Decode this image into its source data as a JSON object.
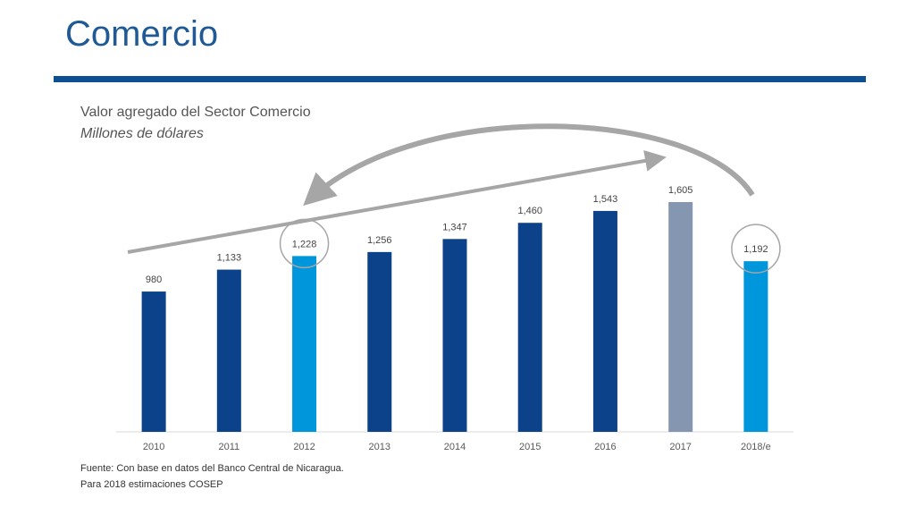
{
  "slide": {
    "title": "Comercio",
    "source": "Fuente: Con base en datos del Banco Central de Nicaragua.",
    "note": "Para 2018 estimaciones COSEP"
  },
  "colors": {
    "title": "#1f5a96",
    "rule": "#0e4f93",
    "bar_dark": "#0b428a",
    "bar_light": "#0096dc",
    "bar_gray": "#8597b0",
    "annotation": "#a6a6a6"
  },
  "chart_data": {
    "type": "bar",
    "title": "Valor agregado del Sector Comercio",
    "subtitle": "Millones de dólares",
    "categories": [
      "2010",
      "2011",
      "2012",
      "2013",
      "2014",
      "2015",
      "2016",
      "2017",
      "2018/e"
    ],
    "values": [
      980,
      1133,
      1228,
      1256,
      1347,
      1460,
      1543,
      1605,
      1192
    ],
    "data_labels": [
      "980",
      "1,133",
      "1,228",
      "1,256",
      "1,347",
      "1,460",
      "1,543",
      "1,605",
      "1,192"
    ],
    "bar_color_keys": [
      "bar_dark",
      "bar_dark",
      "bar_light",
      "bar_dark",
      "bar_dark",
      "bar_dark",
      "bar_dark",
      "bar_gray",
      "bar_light"
    ],
    "highlighted_categories": [
      "2012",
      "2018/e"
    ],
    "ylim": [
      0,
      1605
    ],
    "grid": false,
    "legend": "none",
    "xlabel": "",
    "ylabel": ""
  }
}
